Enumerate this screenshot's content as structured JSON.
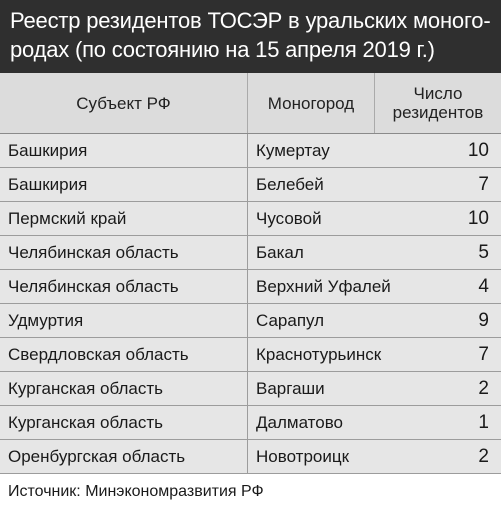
{
  "title": {
    "line1": "Реестр резидентов ТОСЭР в уральских моного-",
    "line2": "родах (по состоянию на 15 апреля 2019 г.)"
  },
  "header": {
    "col1": "Субъект РФ",
    "col2": "Моногород",
    "col3_line1": "Число",
    "col3_line2": "резидентов"
  },
  "rows": [
    {
      "region": "Башкирия",
      "city": "Кумертау",
      "count": "10"
    },
    {
      "region": "Башкирия",
      "city": "Белебей",
      "count": "7"
    },
    {
      "region": "Пермский край",
      "city": "Чусовой",
      "count": "10"
    },
    {
      "region": "Челябинская область",
      "city": "Бакал",
      "count": "5"
    },
    {
      "region": "Челябинская область",
      "city": "Верхний Уфалей",
      "count": "4"
    },
    {
      "region": "Удмуртия",
      "city": "Сарапул",
      "count": "9"
    },
    {
      "region": "Свердловская область",
      "city": "Краснотурьинск",
      "count": "7"
    },
    {
      "region": "Курганская область",
      "city": "Варгаши",
      "count": "2"
    },
    {
      "region": "Курганская область",
      "city": "Далматово",
      "count": "1"
    },
    {
      "region": "Оренбургская область",
      "city": "Новотроицк",
      "count": "2"
    }
  ],
  "source": "Источник: Минэкономразвития РФ",
  "colors": {
    "title_bg": "#2f2f2f",
    "header_bg": "#dcdcdc",
    "row_bg": "#e6e6e6"
  }
}
